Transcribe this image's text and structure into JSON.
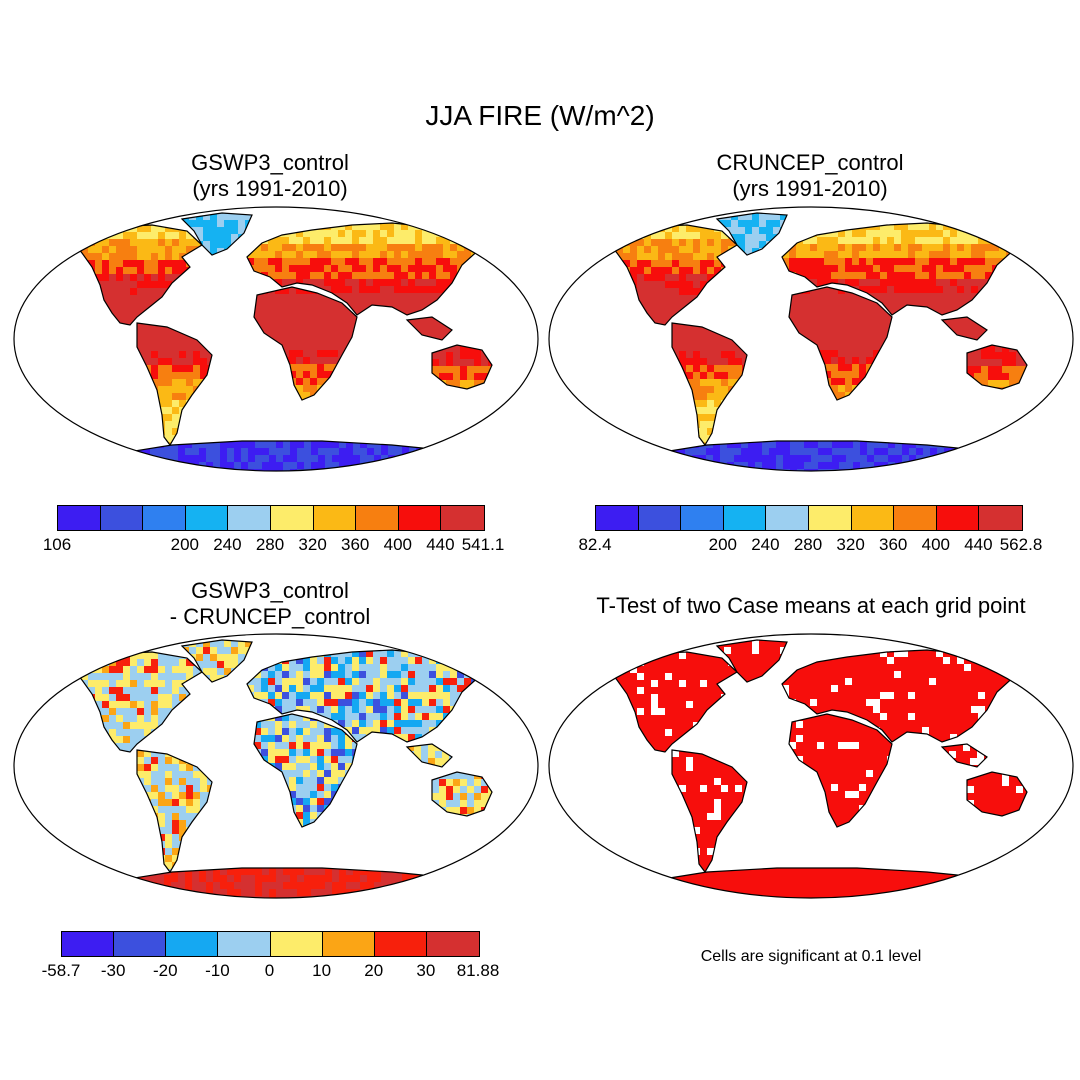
{
  "title": "JJA FIRE (W/m^2)",
  "panels": [
    {
      "id": "gswp3",
      "title_line1": "GSWP3_control",
      "title_line2": "(yrs 1991-2010)",
      "theme": "abs",
      "colorbar": {
        "colors": [
          "#3d1df2",
          "#3c50de",
          "#2f80f0",
          "#15b2f2",
          "#9ccff0",
          "#fdec6a",
          "#fbb915",
          "#f77f10",
          "#f70e0c",
          "#d53030"
        ],
        "labels": [
          "106",
          "200",
          "240",
          "280",
          "320",
          "360",
          "400",
          "440",
          "541.1"
        ]
      }
    },
    {
      "id": "cruncep",
      "title_line1": "CRUNCEP_control",
      "title_line2": "(yrs 1991-2010)",
      "theme": "abs",
      "colorbar": {
        "colors": [
          "#3d1df2",
          "#3c50de",
          "#2f80f0",
          "#15b2f2",
          "#9ccff0",
          "#fdec6a",
          "#fbb915",
          "#f77f10",
          "#f70e0c",
          "#d53030"
        ],
        "labels": [
          "82.4",
          "200",
          "240",
          "280",
          "320",
          "360",
          "400",
          "440",
          "562.8"
        ]
      }
    },
    {
      "id": "diff",
      "title_line1": "GSWP3_control",
      "title_line2": "- CRUNCEP_control",
      "theme": "diff",
      "colorbar": {
        "colors": [
          "#3d1df2",
          "#3c50de",
          "#15a8f2",
          "#9ccff0",
          "#fdec6a",
          "#fba515",
          "#f7200c",
          "#d53030"
        ],
        "labels": [
          "-58.7",
          "-30",
          "-20",
          "-10",
          "0",
          "10",
          "20",
          "30",
          "81.88"
        ]
      }
    },
    {
      "id": "ttest",
      "title_line1": "T-Test of two Case means at each grid point",
      "title_line2": "",
      "theme": "sig",
      "note": "Cells are significant at 0.1 level"
    }
  ]
}
